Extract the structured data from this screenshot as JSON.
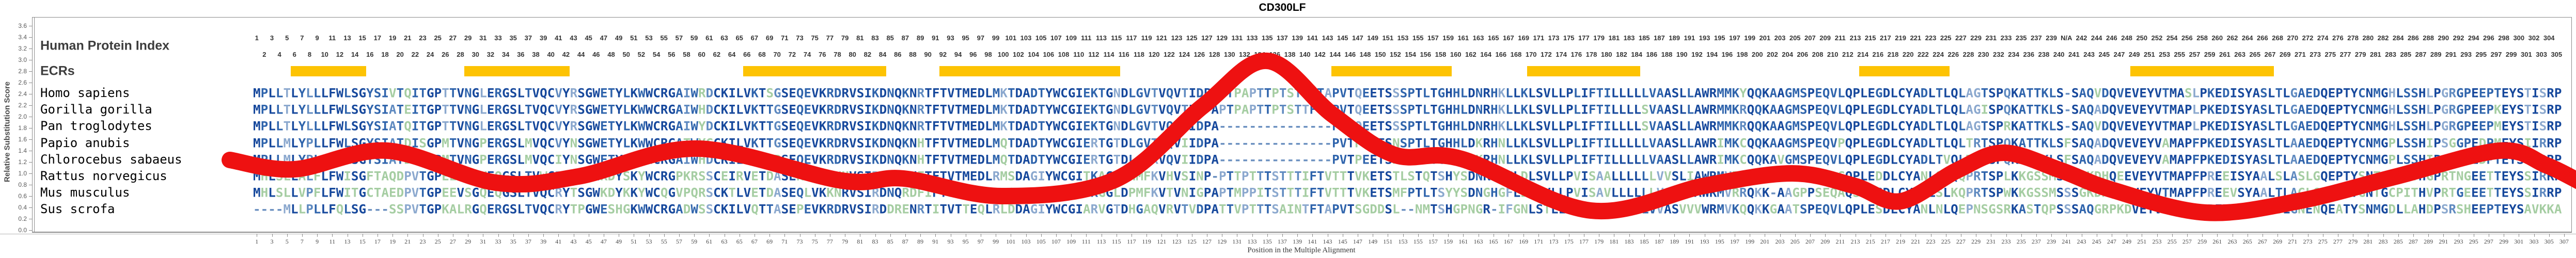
{
  "title": "CD300LF",
  "y_axis": {
    "label": "Relative Substitution Score",
    "tick_min": 0.0,
    "tick_max": 3.6,
    "tick_step": 0.2
  },
  "x_axis": {
    "label": "Position in the Multiple Alignment",
    "first_label": 1,
    "last_label": 307,
    "label_step": 2
  },
  "header": {
    "human_protein_index_label": "Human Protein Index",
    "ecrs_label": "ECRs",
    "gap_index_label": "N/A"
  },
  "alignment_length": 306,
  "human_gap_column": 241,
  "species": [
    {
      "name": "Homo sapiens",
      "seq": "MPLLTLYLLLFWLSGYSIVTQITGPTTVNGLERGSLTVQCVYRSGWETYLKWWCRGAIWRDCKILVKTSGSEQEVKRDRVSIKDNQKNRTFTVTMEDLMKTDADTYWCGIEKTGNDLGVTVQVTIDPASTPAPTTPTSTTFTAPVTQEETSSSPTLTGHHLDNRHKLLKLSVLLPLIFTILLLLLVAASLLAWRMMKYQQKAAGMSPEQVLQPLEGDLCYADLTLQLAGTSPQKATTKLS-SAQVDQVEVEYVTMASLPKEDISYASLTLGAEDQEPTYCNMGHLSSHLPGRGPEEPTEYSTISRP"
    },
    {
      "name": "Gorilla gorilla",
      "seq": "MPLLTLYLLLFWLSGYSIATEITGPTTVNGLERGSLTVQCVYRSGWETYLKWWCRGAIWHDCKILVKTTGSEQEVKRDRVSIKDNQKNRTFTVTMEDLMKTDADTYWCGIEKTGNDLGVTVQVTIDPAPTPAPTTPTSTTFTAPVTQEETSSSPTLTGHHLDNRHKLLKLSVLLPLIFTILLLLSVAASLLAWRMMKRQQKAAGMSPEQVLQPLEGDLCYADLTLQLAGISPQKATTKLS-SAQADQVEVEYVTMAPLPKEDISYASLTLGAEDQEPTYCNMGHLSSHLPGRGPEEPKEYSTISRP"
    },
    {
      "name": "Pan troglodytes",
      "seq": "MPLLTLYLLLFWLSGYSIATQITGPTTVNGLERGSLTVQCVYRSGWETYLKWWCRGAIWYDCKILVKTTGSEQEVKRDRVSIKDNQKNRTFTVTMEDLMKTDADTYWCGIEKTGNDLGVTVQVTIDPA---------------PVTQEETSSSPTLTGHHLDNRHKLLKLSVLLPLIFTILLLLSVAASLLAWRMMKRQQKAAGMSPEQVLQPLEGDLCYADLTLQLAGTSPRKATTKLS-SAQVDQVEVEYVTMAPLPKEDISYASLTLGAEDQEPTYCNMGHLSSHLPGRGPEEPMEYSTISRP"
    },
    {
      "name": "Papio anubis",
      "seq": "MPLLMLYPLLFWLSGYSIATDISGPMTVNGPERGSLMVQCVYNSGWETYLKWWCRGATWYGCKILVKTTGSEQEVKRDRVSIKDNQKNHTFTVTMEDLMQTDADTYWCGIERTGTDLGVTVQVIIDPA---------------PVTPEETSNSPTLTGHHLDKRHNLLKLSVLLPLIFTILLLLLVAASLLAWRIMKCQQKAAGMSPEQVPQPLEGDLCYADLTLQLTRTSPQKATTKLSFSAQADQVEVEYVAMAPFPKEDISYASLTLAAEDQEPTYCNMGPLSSHIPSGGPEDPMEYSIIRRP"
    },
    {
      "name": "Chlorocebus sabaeus",
      "seq": "MPLLMLYPLLFWLSGYSIATDISGPMTVNGPERGSLMVQCIYNSGWETYLKWWCRGAIWHDCKILVKTTRSEQEVKRDRVSIKDNQKNHTFTVTMEDLMQTDADTYWCGIERTGTDLGVKVQVIIDPA---------------PVTPEETSNSPTLTGHHLDKRHNLLKLSVLLPLIFTILLLLLVAASLLAWRIMKCQQKAVGMSPEQVLQPLEGDLCYADLTVQLTRTSPQKATTKLSFSAQADQVEVEYVAMAPFPKEDISYASLTLAAEDQEPTYCNMGPLSSHIPSGGPEDPTEYSIIRRP"
    },
    {
      "name": "Rattus norvegicus",
      "seq": "MHLSLLALFLFWISGFTAQDPVTGPEEVSGYEQGSLTVWCRYGSWWKDYSKYWCRGPKRSSCEIRVETDASERLVKENHVSIRDDQTNFTFTVTMEDLRMSDAGIYWCGITKAGYDHMFKVHVSINP-PTTPTTTSTTTIFTVTTTVKETSTLSTQTSHYSDNRYGFLDLSVLLPVISAALLLLLLVVSLIAWRMVRRQKK-AAGPPS--GQPLEDDLCYANLSLQQPRTSPLKKGSSMSSSGKDHQEEVEYVTMAPFPREEISYAALSLASLGQEPTYSNTACLVTHGPRTNGEETTEYSSIRRP"
    },
    {
      "name": "Mus musculus",
      "seq": "MHLSLLVPFLFWITGCTAEDPVTGPEEVSGQEQGSLTVQCRYTSGWKDYKKYWCQGVPQRSCKTLVETDASEQLVKKNRVSIRDNQRDFIFTVTMEDLRMSDAGIYWCGITKGGLDPMFKVTVNIGPAPTMPPITSTTTIFTVTTTVKETSMFPTLTSYYSDNGHGFLDLSVLLPVISAVLLLLLLVASLFAWRMVRRQKK-AAGPPSEQAQSLEGDLCYADLSLKQPRTSPWKKGSSMSSSGKDHQEEVEYVTMAPFPREEVSYAALTLAGLGQEPTYGNTGCPITHVPRTGEEETTEYSSIRRP"
    },
    {
      "name": "Sus scrofa",
      "seq": "----MLLPLLFQLSG---SSPVTGPKALRGQERGSLTVQCRYTPGWESHGKWWCRGADWSSCKILVQTTASEPEVKRDRVSIRDDRENRTITVTTEQLRLDDAGIYWCGIARVGTDHGAQVRVTVDPATTVPTTTSAINTFTAPVTSGDDSL--NMTSHGPNGR-IFGNLSTLLPLIFAVLLLLLVVASVVVWRMVKQQKKGAATSPEQVLQPLESDLCYANLNLQEPNSGSRKASTQPSSSAQGRPKDVEYVTMAPFPREDIAYAALSLGNENQEATYSNMGDLLAHDPSRSHEEPTEYSAVKKA"
    }
  ],
  "ecr_bars": [
    [
      6,
      15
    ],
    [
      29,
      42
    ],
    [
      66,
      84
    ],
    [
      92,
      115
    ],
    [
      144,
      159
    ],
    [
      170,
      184
    ],
    [
      214,
      225
    ],
    [
      250,
      268
    ]
  ],
  "annotation": {
    "type": "red-marker-squiggle",
    "points": [
      [
        445,
        310
      ],
      [
        570,
        328
      ],
      [
        750,
        292
      ],
      [
        960,
        354
      ],
      [
        1120,
        342
      ],
      [
        1350,
        288
      ],
      [
        1630,
        350
      ],
      [
        1750,
        346
      ],
      [
        1940,
        380
      ],
      [
        2160,
        348
      ],
      [
        2330,
        205
      ],
      [
        2454,
        118
      ],
      [
        2580,
        222
      ],
      [
        2700,
        300
      ],
      [
        2830,
        308
      ],
      [
        3080,
        408
      ],
      [
        3300,
        360
      ],
      [
        3470,
        336
      ],
      [
        3590,
        360
      ],
      [
        3680,
        390
      ],
      [
        3790,
        330
      ],
      [
        3880,
        296
      ],
      [
        3990,
        330
      ],
      [
        4090,
        368
      ],
      [
        4270,
        412
      ],
      [
        4450,
        390
      ],
      [
        4640,
        342
      ],
      [
        4840,
        292
      ],
      [
        4930,
        320
      ],
      [
        4995,
        352
      ]
    ]
  },
  "colors": {
    "ecr_bar": "#FDC303",
    "annotation_red": "#EE1111",
    "seq_conserved": "#16489C",
    "seq_high": "#2F64AC",
    "seq_mid": "#5F8AC0",
    "seq_low": "#8BA8CE",
    "seq_variable": "#A5CDA2",
    "seq_gap": "#6B90C0",
    "axis_line": "#8A8A8A",
    "number_text": "#333333"
  },
  "chart_data": {
    "type": "table",
    "title": "CD300LF",
    "xlabel": "Position in the Multiple Alignment",
    "ylabel": "Relative Substitution Score",
    "ylim": [
      0.0,
      3.6
    ],
    "x_tick_labels_odd": "1..307 step 2",
    "human_index_labels": "1..305 with N/A at alignment column 241",
    "categories": [
      "Homo sapiens",
      "Gorilla gorilla",
      "Pan troglodytes",
      "Papio anubis",
      "Chlorocebus sabaeus",
      "Rattus norvegicus",
      "Mus musculus",
      "Sus scrofa"
    ],
    "ecr_segments_columns": [
      [
        6,
        15
      ],
      [
        29,
        42
      ],
      [
        66,
        84
      ],
      [
        92,
        115
      ],
      [
        144,
        159
      ],
      [
        170,
        184
      ],
      [
        214,
        225
      ],
      [
        250,
        268
      ]
    ],
    "legend_position": "none",
    "grid": false
  }
}
